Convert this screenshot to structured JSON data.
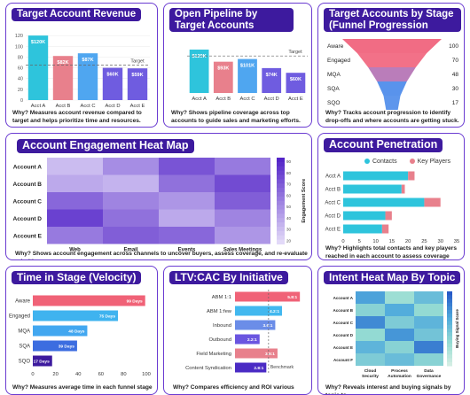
{
  "cards": {
    "revenue": {
      "title": "Target Account Revenue",
      "why": "Why? Measures account revenue compared to target and helps prioritize time and resources.",
      "target_label": "Target"
    },
    "pipeline": {
      "title": "Open Pipeline by Target Accounts",
      "why": "Why? Shows pipeline coverage across top accounts to guide sales and marketing efforts.",
      "target_label": "Target"
    },
    "stage": {
      "title": "Target Accounts by Stage (Funnel Progression",
      "why": "Why? Tracks account progression to identify drop-offs and where accounts are getting stuck."
    },
    "engagement": {
      "title": "Account Engagement Heat Map",
      "why": "Why? Shows account engagement across channels to uncover buyers, assess coverage, and re-evaluate priorities.",
      "scale_label": "Engagement Score"
    },
    "penetration": {
      "title": "Account Penetration",
      "why": "Why? Highlights total contacts and key players reached in each account to assess coverage depth.",
      "legend": [
        "Contacts",
        "Key Players"
      ]
    },
    "velocity": {
      "title": "Time in Stage (Velocity)",
      "why": "Why? Measures average time in each funnel stage"
    },
    "ltv": {
      "title": "LTV:CAC By Initiative",
      "why": "Why? Compares efficiency and ROI various",
      "benchmark_label": "Benchmark"
    },
    "intent": {
      "title": "Intent Heat Map By Topic",
      "why": "Why? Reveals interest and buying signals by topic to",
      "scale_label": "Buying Signal Score"
    }
  },
  "colors": {
    "brand": "#3d1a9e",
    "border": "#6a3bd1",
    "cyan": "#2ec4dc",
    "pink": "#e8808c",
    "blue": "#4fa6f0",
    "violet": "#6f5ce0",
    "funnel_top": "#f0607a",
    "funnel_bottom": "#3a7fe8"
  },
  "chart_data": [
    {
      "id": "revenue",
      "type": "bar",
      "title": "Target Account Revenue",
      "categories": [
        "Acct A",
        "Acct B",
        "Acct C",
        "Acct D",
        "Acct E"
      ],
      "values": [
        120,
        82,
        87,
        60,
        59
      ],
      "labels": [
        "$120K",
        "$82K",
        "$87K",
        "$60K",
        "$59K"
      ],
      "target": 65,
      "ylim": [
        0,
        140
      ],
      "yticks": [
        0,
        20,
        40,
        60,
        80,
        100,
        120
      ]
    },
    {
      "id": "pipeline",
      "type": "bar",
      "title": "Open Pipeline by Target Accounts",
      "categories": [
        "Acct A",
        "Acct B",
        "Acct C",
        "Acct D",
        "Acct E"
      ],
      "values": [
        129,
        93,
        101,
        74,
        60
      ],
      "labels": [
        "$129K",
        "$93K",
        "$101K",
        "$74K",
        "$60K"
      ],
      "target": 110,
      "ylim": [
        0,
        150
      ],
      "yticks": [
        0,
        25,
        50,
        75,
        100,
        125,
        150
      ]
    },
    {
      "id": "stage",
      "type": "bar",
      "title": "Target Accounts by Stage (Funnel Progression",
      "categories": [
        "Aware",
        "Engaged",
        "MQA",
        "SQA",
        "SQO"
      ],
      "values": [
        100,
        70,
        48,
        30,
        17
      ],
      "labels": [
        "100",
        "70",
        "48",
        "30",
        "17"
      ]
    },
    {
      "id": "engagement",
      "type": "heatmap",
      "title": "Account Engagement Heat Map",
      "rows": [
        "Account A",
        "Account B",
        "Account C",
        "Account D",
        "Account E"
      ],
      "columns": [
        "Web",
        "Email",
        "Events",
        "Sales Meetings"
      ],
      "values": [
        [
          20,
          45,
          75,
          55
        ],
        [
          30,
          25,
          60,
          80
        ],
        [
          65,
          50,
          40,
          70
        ],
        [
          85,
          60,
          30,
          50
        ],
        [
          55,
          70,
          65,
          40
        ]
      ],
      "scale_ticks": [
        "90",
        "80",
        "70",
        "60",
        "50",
        "40",
        "30",
        "20"
      ]
    },
    {
      "id": "penetration",
      "type": "bar",
      "title": "Account Penetration",
      "categories": [
        "Acct A",
        "Acct B",
        "Acct C",
        "Acct D",
        "Acct E"
      ],
      "series": [
        {
          "name": "Contacts",
          "values": [
            20,
            18,
            25,
            13,
            12
          ]
        },
        {
          "name": "Key Players",
          "values": [
            2,
            1,
            5,
            2,
            2
          ]
        }
      ],
      "xticks": [
        0,
        5,
        10,
        15,
        20,
        25,
        30,
        35
      ],
      "xlim": [
        0,
        35
      ]
    },
    {
      "id": "velocity",
      "type": "bar",
      "title": "Time in Stage (Velocity)",
      "categories": [
        "Aware",
        "Engaged",
        "MQA",
        "SQA",
        "SQO"
      ],
      "values": [
        99,
        75,
        48,
        39,
        17
      ],
      "labels": [
        "99 Days",
        "75 Days",
        "48 Days",
        "39 Days",
        "17 Days"
      ],
      "xticks": [
        0,
        20,
        40,
        60,
        80,
        100
      ],
      "xlim": [
        0,
        100
      ]
    },
    {
      "id": "ltv",
      "type": "bar",
      "title": "LTV:CAC By Initiative",
      "categories": [
        "ABM 1:1",
        "ABM 1:few",
        "Inbound",
        "Outbound",
        "Field Marketing",
        "Content Syndication"
      ],
      "values": [
        5.8,
        4.2,
        3.6,
        2.2,
        3.8,
        2.8
      ],
      "labels": [
        "5.8:1",
        "4.2:1",
        "3.6:1",
        "2.2:1",
        "3.8:1",
        "2.8:1"
      ],
      "benchmark": 3,
      "xlim": [
        0,
        6.5
      ]
    },
    {
      "id": "intent",
      "type": "heatmap",
      "title": "Intent Heat Map By Topic",
      "rows": [
        "Account A",
        "Account B",
        "Account C",
        "Account D",
        "Account E",
        "Account F"
      ],
      "columns": [
        "Cloud Security",
        "Process Automation",
        "Data Governance"
      ],
      "values": [
        [
          70,
          30,
          55
        ],
        [
          40,
          65,
          35
        ],
        [
          80,
          45,
          60
        ],
        [
          35,
          75,
          50
        ],
        [
          60,
          40,
          85
        ],
        [
          45,
          55,
          40
        ]
      ]
    }
  ]
}
